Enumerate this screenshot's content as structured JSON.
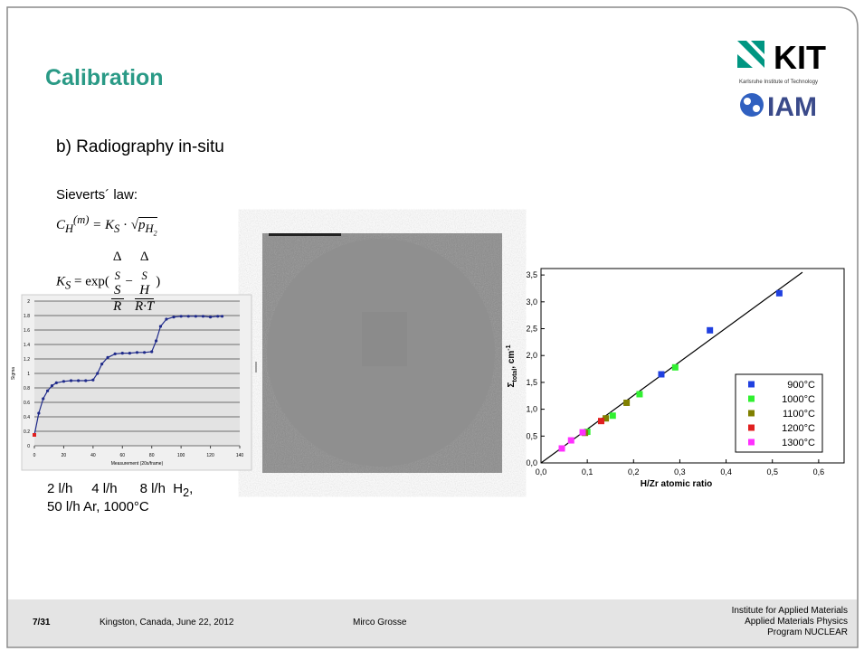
{
  "header": {
    "title": "Calibration",
    "logo_top": "KIT",
    "logo_tagline": "Karlsruhe Institute of Technology",
    "logo_bottom": "IAM"
  },
  "subtitle": "b) Radiography in-situ",
  "law": {
    "heading": "Sieverts´ law:",
    "eq1": {
      "lhs": "C",
      "lhs_sub": "H",
      "lhs_sup": "(m)",
      "rhs": "= K",
      "rhs_sub": "S",
      "dot": " · √",
      "p": "p",
      "p_sub": "H",
      "p_sub2": "2"
    },
    "eq2": {
      "lhs": "K",
      "lhs_sub": "S",
      "eq": "= exp(",
      "n1": "Δ",
      "n1_sub": "S",
      "n1_rest": "S",
      "d1": "R",
      "minus": "−",
      "n2": "Δ",
      "n2_sub": "S",
      "n2_rest": "H",
      "d2": "R·T",
      "close": ")"
    }
  },
  "caption": {
    "line1a": "2 l/h",
    "line1b": "4 l/h",
    "line1c": "8 l/h",
    "line1d": "H",
    "line1d_sub": "2",
    "line1e": ",",
    "line2": "50 l/h Ar, 1000°C"
  },
  "chart_data": [
    {
      "type": "line",
      "y_label": "Sigma",
      "x_label": "Measurement (20s/frame)",
      "x": [
        0,
        3,
        6,
        9,
        12,
        15,
        20,
        25,
        30,
        35,
        40,
        43,
        46,
        50,
        55,
        60,
        65,
        70,
        75,
        80,
        83,
        86,
        90,
        95,
        100,
        105,
        110,
        115,
        120,
        125,
        128
      ],
      "values": [
        0.15,
        0.45,
        0.65,
        0.76,
        0.83,
        0.87,
        0.89,
        0.9,
        0.9,
        0.9,
        0.91,
        1.0,
        1.13,
        1.22,
        1.27,
        1.28,
        1.28,
        1.29,
        1.29,
        1.3,
        1.45,
        1.65,
        1.75,
        1.78,
        1.79,
        1.79,
        1.79,
        1.79,
        1.78,
        1.79,
        1.79
      ],
      "color": "#1f2a8a",
      "highlight": {
        "x": [
          0
        ],
        "values": [
          0.15
        ],
        "color": "#e02020"
      },
      "xlim": [
        0,
        140
      ],
      "ylim": [
        0,
        2
      ],
      "xticks": [
        0,
        20,
        40,
        60,
        80,
        100,
        120,
        140
      ],
      "yticks": [
        0,
        0.2,
        0.4,
        0.6,
        0.8,
        1,
        1.2,
        1.4,
        1.6,
        1.8,
        2
      ],
      "grid": true
    },
    {
      "type": "scatter",
      "x_label": "H/Zr atomic ratio",
      "y_label": {
        "symbol": "Σ",
        "sub": "total",
        "unit": ", cm",
        "sup": "-1"
      },
      "series": [
        {
          "name": "900°C",
          "color": "#2040e0",
          "x": [
            0.26,
            0.365,
            0.515
          ],
          "values": [
            1.65,
            2.47,
            3.16
          ]
        },
        {
          "name": "1000°C",
          "color": "#30f030",
          "x": [
            0.29,
            0.213,
            0.155,
            0.1
          ],
          "values": [
            1.78,
            1.28,
            0.88,
            0.58
          ]
        },
        {
          "name": "1100°C",
          "color": "#808000",
          "x": [
            0.185,
            0.14,
            0.095
          ],
          "values": [
            1.12,
            0.83,
            0.56
          ]
        },
        {
          "name": "1200°C",
          "color": "#e02020",
          "x": [
            0.13
          ],
          "values": [
            0.78
          ]
        },
        {
          "name": "1300°C",
          "color": "#ff30ff",
          "x": [
            0.045,
            0.065,
            0.09
          ],
          "values": [
            0.27,
            0.42,
            0.57
          ]
        }
      ],
      "lines": [
        {
          "color": "#000000",
          "x": [
            0,
            0.565
          ],
          "values": [
            0,
            3.55
          ]
        }
      ],
      "xlim": [
        0,
        0.655
      ],
      "ylim": [
        0,
        3.62
      ],
      "xticks": [
        {
          "value": 0,
          "label": "0,0"
        },
        {
          "value": 0.1,
          "label": "0,1"
        },
        {
          "value": 0.2,
          "label": "0,2"
        },
        {
          "value": 0.3,
          "label": "0,3"
        },
        {
          "value": 0.4,
          "label": "0,4"
        },
        {
          "value": 0.5,
          "label": "0,5"
        },
        {
          "value": 0.6,
          "label": "0,6"
        }
      ],
      "yticks": [
        {
          "value": 0,
          "label": "0,0"
        },
        {
          "value": 0.5,
          "label": "0,5"
        },
        {
          "value": 1,
          "label": "1,0"
        },
        {
          "value": 1.5,
          "label": "1,5"
        },
        {
          "value": 2,
          "label": "2,0"
        },
        {
          "value": 2.5,
          "label": "2,5"
        },
        {
          "value": 3,
          "label": "3,0"
        },
        {
          "value": 3.5,
          "label": "3,5"
        }
      ],
      "legend": "lower right"
    }
  ],
  "footer": {
    "page": "7/31",
    "event": "Kingston, Canada, June 22, 2012",
    "author": "Mirco Grosse",
    "institute": [
      "Institute for Applied Materials",
      "Applied Materials Physics",
      "Program NUCLEAR"
    ]
  }
}
